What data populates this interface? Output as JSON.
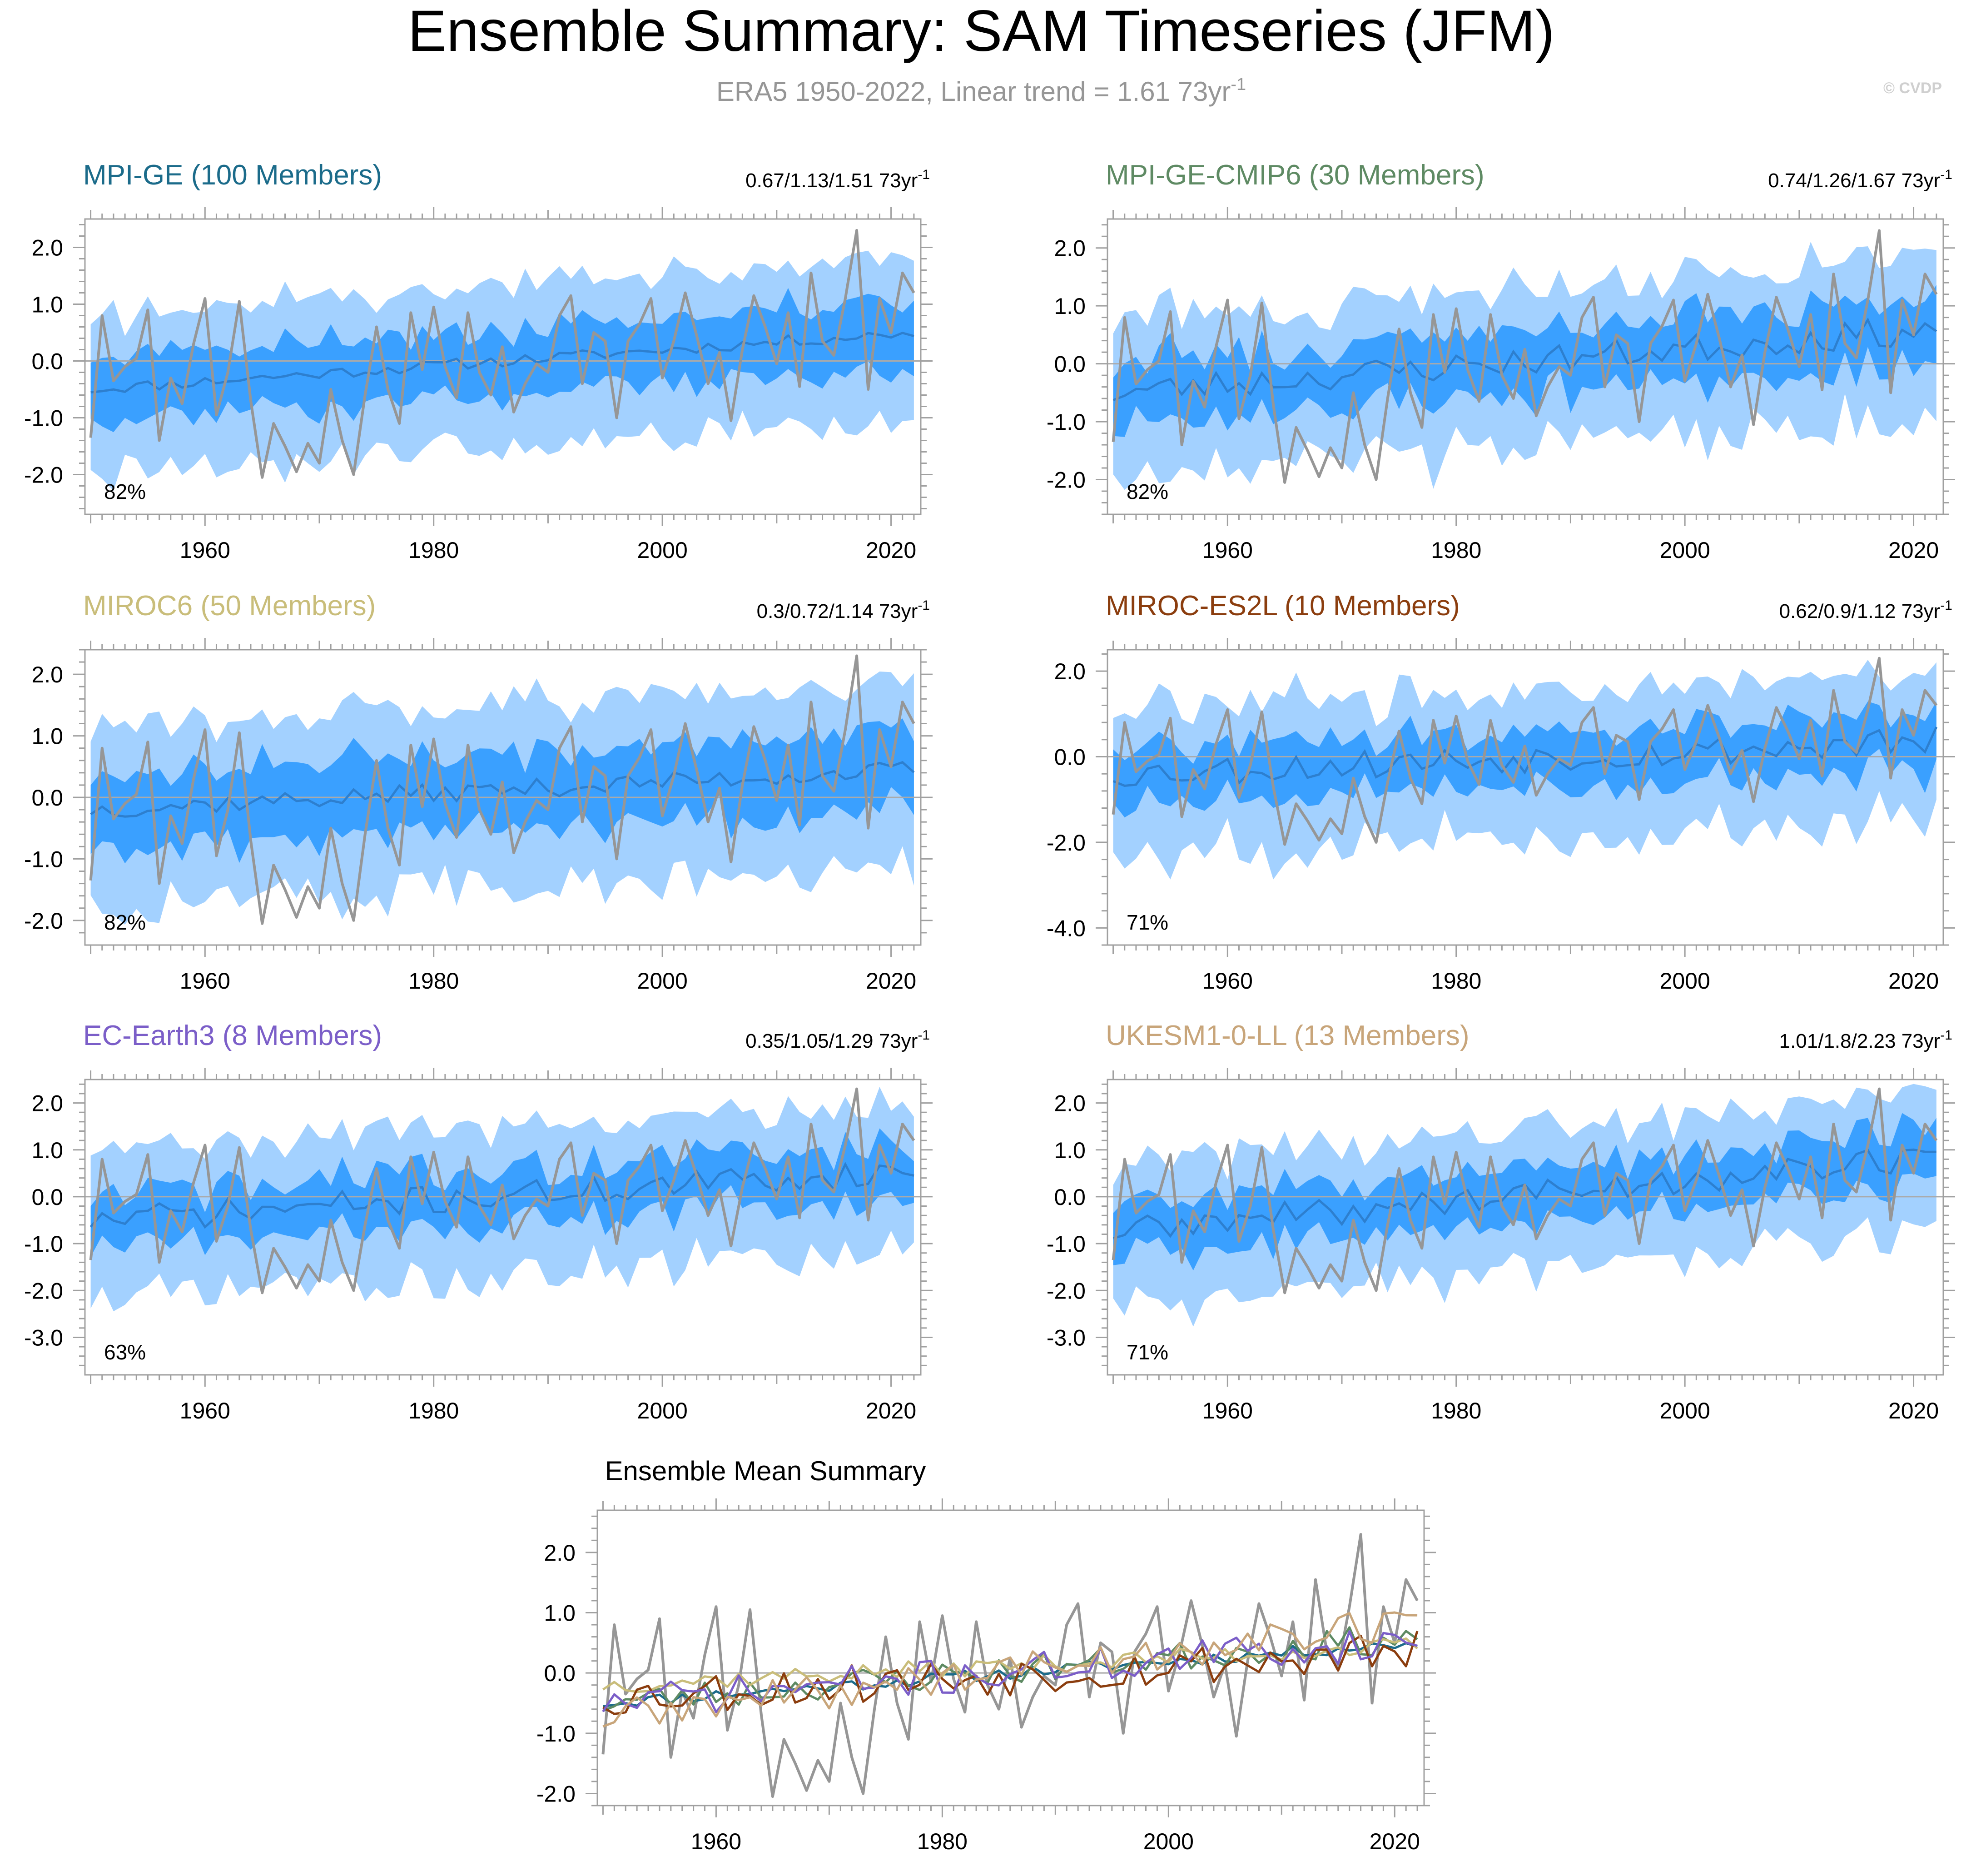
{
  "figure": {
    "title": "Ensemble Summary: SAM Timeseries (JFM)",
    "subtitle_main": "ERA5 1950-2022, Linear trend = 1.61 73yr",
    "subtitle_sup": "-1",
    "watermark": "© CVDP"
  },
  "colors": {
    "band_outer": "#a3d1ff",
    "band_inner": "#3aa0ff",
    "ens_mean": "#2d7fcf",
    "obs": "#969696",
    "zero_line": "#aaaaaa",
    "axis": "#a0a0a0",
    "text": "#000000",
    "subtitle": "#969696"
  },
  "chart_data": [
    {
      "type": "line",
      "panel": "MPI-GE",
      "title": "MPI-GE (100 Members)",
      "title_color": "#1b6b8a",
      "trend_label": "0.67/1.13/1.51 73yr",
      "trend_sup": "-1",
      "pct_label": "82%",
      "ylim": [
        -2.7,
        2.5
      ],
      "yticks": [
        -2,
        -1,
        0,
        1,
        2
      ],
      "ytick_labels": [
        "-2.0",
        "-1.0",
        "0.0",
        "1.0",
        "2.0"
      ],
      "xlim": [
        1949.5,
        2022.6
      ],
      "xticks": [
        1960,
        1980,
        2000,
        2020
      ],
      "xtick_labels": [
        "1960",
        "1980",
        "2000",
        "2020"
      ],
      "trend_start": -0.5,
      "trend_end": 0.5,
      "inner_hw": 0.55,
      "outer_hw": 1.05,
      "wiggle": 0.1,
      "seed": 11
    },
    {
      "type": "line",
      "panel": "MPI-GE-CMIP6",
      "title": "MPI-GE-CMIP6 (30 Members)",
      "title_color": "#5e8a63",
      "trend_label": "0.74/1.26/1.67 73yr",
      "trend_sup": "-1",
      "pct_label": "82%",
      "ylim": [
        -2.6,
        2.5
      ],
      "yticks": [
        -2,
        -1,
        0,
        1,
        2
      ],
      "ytick_labels": [
        "-2.0",
        "-1.0",
        "0.0",
        "1.0",
        "2.0"
      ],
      "xlim": [
        1949.5,
        2022.6
      ],
      "xticks": [
        1960,
        1980,
        2000,
        2020
      ],
      "xtick_labels": [
        "1960",
        "1980",
        "2000",
        "2020"
      ],
      "trend_start": -0.5,
      "trend_end": 0.6,
      "inner_hw": 0.55,
      "outer_hw": 1.05,
      "wiggle": 0.25,
      "seed": 23
    },
    {
      "type": "line",
      "panel": "MIROC6",
      "title": "MIROC6 (50 Members)",
      "title_color": "#c9bd7a",
      "trend_label": "0.3/0.72/1.14 73yr",
      "trend_sup": "-1",
      "pct_label": "82%",
      "ylim": [
        -2.4,
        2.4
      ],
      "yticks": [
        -2,
        -1,
        0,
        1,
        2
      ],
      "ytick_labels": [
        "-2.0",
        "-1.0",
        "0.0",
        "1.0",
        "2.0"
      ],
      "xlim": [
        1949.5,
        2022.6
      ],
      "xticks": [
        1960,
        1980,
        2000,
        2020
      ],
      "xtick_labels": [
        "1960",
        "1980",
        "2000",
        "2020"
      ],
      "trend_start": -0.2,
      "trend_end": 0.45,
      "inner_hw": 0.6,
      "outer_hw": 1.15,
      "wiggle": 0.15,
      "seed": 37
    },
    {
      "type": "line",
      "panel": "MIROC-ES2L",
      "title": "MIROC-ES2L (10 Members)",
      "title_color": "#8b3d0e",
      "trend_label": "0.62/0.9/1.12 73yr",
      "trend_sup": "-1",
      "pct_label": "71%",
      "ylim": [
        -4.4,
        2.5
      ],
      "yticks": [
        -4,
        -2,
        0,
        2
      ],
      "ytick_labels": [
        "-4.0",
        "-2.0",
        "0.0",
        "2.0"
      ],
      "xlim": [
        1949.5,
        2022.6
      ],
      "xticks": [
        1960,
        1980,
        2000,
        2020
      ],
      "xtick_labels": [
        "1960",
        "1980",
        "2000",
        "2020"
      ],
      "trend_start": -0.4,
      "trend_end": 0.35,
      "inner_hw": 0.65,
      "outer_hw": 1.4,
      "wiggle": 0.35,
      "seed": 53
    },
    {
      "type": "line",
      "panel": "EC-Earth3",
      "title": "EC-Earth3 (8 Members)",
      "title_color": "#7b5ec8",
      "trend_label": "0.35/1.05/1.29 73yr",
      "trend_sup": "-1",
      "pct_label": "63%",
      "ylim": [
        -3.8,
        2.5
      ],
      "yticks": [
        -3,
        -2,
        -1,
        0,
        1,
        2
      ],
      "ytick_labels": [
        "-3.0",
        "-2.0",
        "-1.0",
        "0.0",
        "1.0",
        "2.0"
      ],
      "xlim": [
        1949.5,
        2022.6
      ],
      "xticks": [
        1960,
        1980,
        2000,
        2020
      ],
      "xtick_labels": [
        "1960",
        "1980",
        "2000",
        "2020"
      ],
      "trend_start": -0.5,
      "trend_end": 0.55,
      "inner_hw": 0.55,
      "outer_hw": 1.3,
      "wiggle": 0.3,
      "seed": 71
    },
    {
      "type": "line",
      "panel": "UKESM1-0-LL",
      "title": "UKESM1-0-LL (13 Members)",
      "title_color": "#c8a57a",
      "trend_label": "1.01/1.8/2.23 73yr",
      "trend_sup": "-1",
      "pct_label": "71%",
      "ylim": [
        -3.8,
        2.5
      ],
      "yticks": [
        -3,
        -2,
        -1,
        0,
        1,
        2
      ],
      "ytick_labels": [
        "-3.0",
        "-2.0",
        "-1.0",
        "0.0",
        "1.0",
        "2.0"
      ],
      "xlim": [
        1949.5,
        2022.6
      ],
      "xticks": [
        1960,
        1980,
        2000,
        2020
      ],
      "xtick_labels": [
        "1960",
        "1980",
        "2000",
        "2020"
      ],
      "trend_start": -0.75,
      "trend_end": 0.85,
      "inner_hw": 0.55,
      "outer_hw": 1.2,
      "wiggle": 0.3,
      "seed": 89
    },
    {
      "type": "line",
      "panel": "Ensemble Mean Summary",
      "title": "Ensemble Mean Summary",
      "title_color": "#000000",
      "ylim": [
        -2.2,
        2.7
      ],
      "yticks": [
        -2,
        -1,
        0,
        1,
        2
      ],
      "ytick_labels": [
        "-2.0",
        "-1.0",
        "0.0",
        "1.0",
        "2.0"
      ],
      "xlim": [
        1949.5,
        2022.6
      ],
      "xticks": [
        1960,
        1980,
        2000,
        2020
      ],
      "xtick_labels": [
        "1960",
        "1980",
        "2000",
        "2020"
      ],
      "series": [
        {
          "name": "MPI-GE",
          "color": "#1b6b8a",
          "trend_start": -0.5,
          "trend_end": 0.5,
          "wiggle": 0.1,
          "seed": 11
        },
        {
          "name": "MPI-GE-CMIP6",
          "color": "#5e8a63",
          "trend_start": -0.5,
          "trend_end": 0.6,
          "wiggle": 0.25,
          "seed": 23
        },
        {
          "name": "MIROC6",
          "color": "#c9bd7a",
          "trend_start": -0.2,
          "trend_end": 0.45,
          "wiggle": 0.15,
          "seed": 37
        },
        {
          "name": "MIROC-ES2L",
          "color": "#8b3d0e",
          "trend_start": -0.4,
          "trend_end": 0.35,
          "wiggle": 0.35,
          "seed": 53
        },
        {
          "name": "EC-Earth3",
          "color": "#7b5ec8",
          "trend_start": -0.5,
          "trend_end": 0.55,
          "wiggle": 0.3,
          "seed": 71
        },
        {
          "name": "UKESM1-0-LL",
          "color": "#c8a57a",
          "trend_start": -0.75,
          "trend_end": 0.85,
          "wiggle": 0.3,
          "seed": 89
        }
      ]
    }
  ],
  "observations": {
    "name": "ERA5",
    "years": [
      1950,
      2022
    ],
    "values": [
      -1.35,
      0.8,
      -0.35,
      -0.1,
      0.05,
      0.9,
      -1.4,
      -0.3,
      -0.75,
      0.3,
      1.1,
      -0.95,
      -0.2,
      1.05,
      -0.7,
      -2.05,
      -1.1,
      -1.5,
      -1.95,
      -1.45,
      -1.8,
      -0.5,
      -1.4,
      -2.0,
      -0.6,
      0.6,
      -0.5,
      -1.1,
      0.85,
      -0.15,
      0.95,
      -0.1,
      -0.65,
      0.85,
      -0.2,
      -0.6,
      0.25,
      -0.9,
      -0.4,
      -0.05,
      -0.2,
      0.8,
      1.15,
      -0.4,
      0.5,
      0.35,
      -1.0,
      0.35,
      0.65,
      1.1,
      -0.3,
      0.35,
      1.2,
      0.45,
      -0.4,
      0.15,
      -1.05,
      0.2,
      1.15,
      0.6,
      -0.05,
      0.85,
      -0.45,
      1.55,
      0.35,
      0.1,
      1.1,
      2.3,
      -0.5,
      1.1,
      0.5,
      1.55,
      1.2
    ]
  }
}
